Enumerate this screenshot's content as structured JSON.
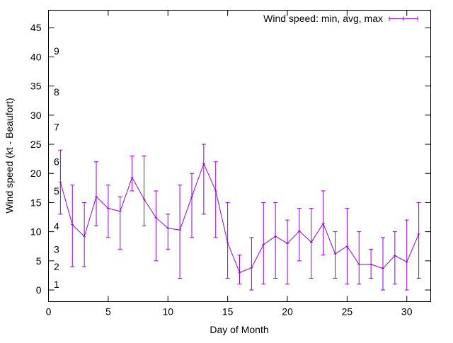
{
  "chart_data": {
    "type": "line",
    "title": "",
    "xlabel": "Day of Month",
    "ylabel": "Wind speed (kt - Beaufort)",
    "xlim": [
      0,
      32
    ],
    "ylim": [
      -2,
      48
    ],
    "xticks": [
      0,
      5,
      10,
      15,
      20,
      25,
      30
    ],
    "yticks": [
      0,
      5,
      10,
      15,
      20,
      25,
      30,
      35,
      40,
      45
    ],
    "grid": false,
    "legend_position": "top-right",
    "beaufort_labels": [
      {
        "label": "1",
        "y": 1
      },
      {
        "label": "2",
        "y": 4
      },
      {
        "label": "3",
        "y": 7
      },
      {
        "label": "4",
        "y": 11
      },
      {
        "label": "5",
        "y": 17
      },
      {
        "label": "6",
        "y": 22
      },
      {
        "label": "7",
        "y": 28
      },
      {
        "label": "8",
        "y": 34
      },
      {
        "label": "9",
        "y": 41
      }
    ],
    "series": [
      {
        "name": "Wind speed: min, avg, max",
        "color": "#9400d3",
        "x": [
          1,
          2,
          3,
          4,
          5,
          6,
          7,
          8,
          9,
          10,
          11,
          12,
          13,
          14,
          15,
          16,
          17,
          18,
          19,
          20,
          21,
          22,
          23,
          24,
          25,
          26,
          27,
          28,
          29,
          30,
          31
        ],
        "avg": [
          18.5,
          11.2,
          9.2,
          16,
          14,
          13.5,
          19.3,
          15.6,
          12.4,
          10.6,
          10.3,
          16,
          21.7,
          17,
          8.1,
          3,
          3.8,
          7.8,
          9.2,
          8,
          10.1,
          8.2,
          11.4,
          6.2,
          7.5,
          4.4,
          4.4,
          3.7,
          5.9,
          4.8,
          9.6
        ],
        "min": [
          13,
          4,
          4,
          11,
          9,
          7,
          17,
          11,
          5,
          7,
          2,
          9,
          13,
          9,
          2,
          1,
          0,
          1,
          2,
          1,
          5,
          2,
          6,
          2,
          1,
          1,
          2,
          0,
          1,
          0,
          2
        ],
        "max": [
          24,
          18,
          15,
          22,
          18,
          16,
          23,
          23,
          17,
          13,
          18,
          20,
          25,
          22,
          15,
          6,
          9,
          15,
          15,
          12,
          14,
          14,
          17,
          10,
          14,
          10,
          7,
          9,
          10,
          12,
          15
        ]
      }
    ]
  }
}
